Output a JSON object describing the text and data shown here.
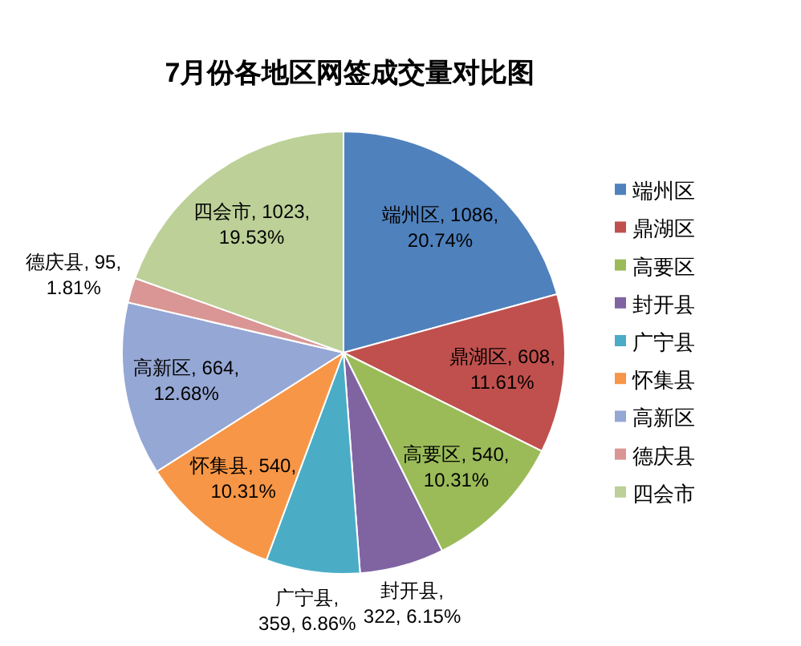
{
  "chart_data": {
    "type": "pie",
    "title": "7月份各地区网签成交量对比图",
    "categories": [
      "端州区",
      "鼎湖区",
      "高要区",
      "封开县",
      "广宁县",
      "怀集县",
      "高新区",
      "德庆县",
      "四会市"
    ],
    "values": [
      1086,
      608,
      540,
      322,
      359,
      540,
      664,
      95,
      1023
    ],
    "colors": [
      "#4f81bd",
      "#c0504d",
      "#9bbb59",
      "#8064a2",
      "#4bacc6",
      "#f79646",
      "#95a7d4",
      "#d99694",
      "#bcd098"
    ],
    "value_labels": [
      "端州区, 1086, 20.74%",
      "鼎湖区, 608, 11.61%",
      "高要区, 540, 10.31%",
      "封开县, 322, 6.15%",
      "广宁县, 359, 6.86%",
      "怀集县, 540, 10.31%",
      "高新区, 664, 12.68%",
      "德庆县, 95, 1.81%",
      "四会市, 1023, 19.53%"
    ],
    "legend": "right"
  }
}
